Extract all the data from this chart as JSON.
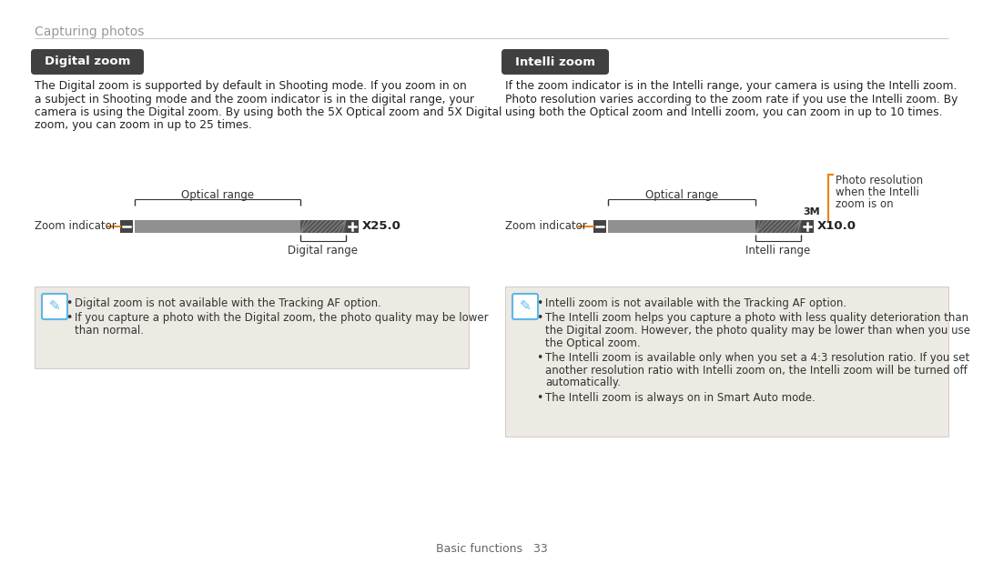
{
  "bg_color": "#ffffff",
  "page_title": "Capturing photos",
  "page_title_color": "#999999",
  "divider_color": "#cccccc",
  "footer_text": "Basic functions   33",
  "footer_color": "#666666",
  "left_section": {
    "heading": "Digital zoom",
    "heading_bg": "#404040",
    "heading_color": "#ffffff",
    "body_lines": [
      "The Digital zoom is supported by default in Shooting mode. If you zoom in on",
      "a subject in Shooting mode and the zoom indicator is in the digital range, your",
      "camera is using the Digital zoom. By using both the 5X Optical zoom and 5X Digital",
      "zoom, you can zoom in up to 25 times."
    ],
    "body_color": "#222222",
    "optical_label": "Optical range",
    "zoom_indicator_label": "Zoom indicator",
    "digital_range_label": "Digital range",
    "zoom_value": "X25.0",
    "note_bg": "#ede9e3",
    "note_border": "#d0ccc6",
    "note_lines": [
      [
        "Digital zoom is not available with the Tracking AF option."
      ],
      [
        "If you capture a photo with the Digital zoom, the photo quality may be lower",
        "than normal."
      ]
    ]
  },
  "right_section": {
    "heading": "Intelli zoom",
    "heading_bg": "#404040",
    "heading_color": "#ffffff",
    "body_lines": [
      "If the zoom indicator is in the Intelli range, your camera is using the Intelli zoom.",
      "Photo resolution varies according to the zoom rate if you use the Intelli zoom. By",
      "using both the Optical zoom and Intelli zoom, you can zoom in up to 10 times."
    ],
    "body_color": "#222222",
    "optical_label": "Optical range",
    "zoom_indicator_label": "Zoom indicator",
    "intelli_range_label": "Intelli range",
    "zoom_value": "X10.0",
    "resolution_label": [
      "Photo resolution",
      "when the Intelli",
      "zoom is on"
    ],
    "resolution_marker": "3M",
    "note_bg": "#ede9e3",
    "note_border": "#d0ccc6",
    "note_lines": [
      [
        "Intelli zoom is not available with the Tracking AF option."
      ],
      [
        "The Intelli zoom helps you capture a photo with less quality deterioration than",
        "the Digital zoom. However, the photo quality may be lower than when you use",
        "the Optical zoom."
      ],
      [
        "The Intelli zoom is available only when you set a 4:3 resolution ratio. If you set",
        "another resolution ratio with Intelli zoom on, the Intelli zoom will be turned off",
        "automatically."
      ],
      [
        "The Intelli zoom is always on in Smart Auto mode."
      ]
    ]
  },
  "orange_color": "#e8820a",
  "bar_gray": "#909090",
  "bar_dark": "#555555",
  "btn_color": "#444444",
  "icon_border_color": "#5bb8e8",
  "text_dark": "#222222",
  "text_mid": "#333333"
}
